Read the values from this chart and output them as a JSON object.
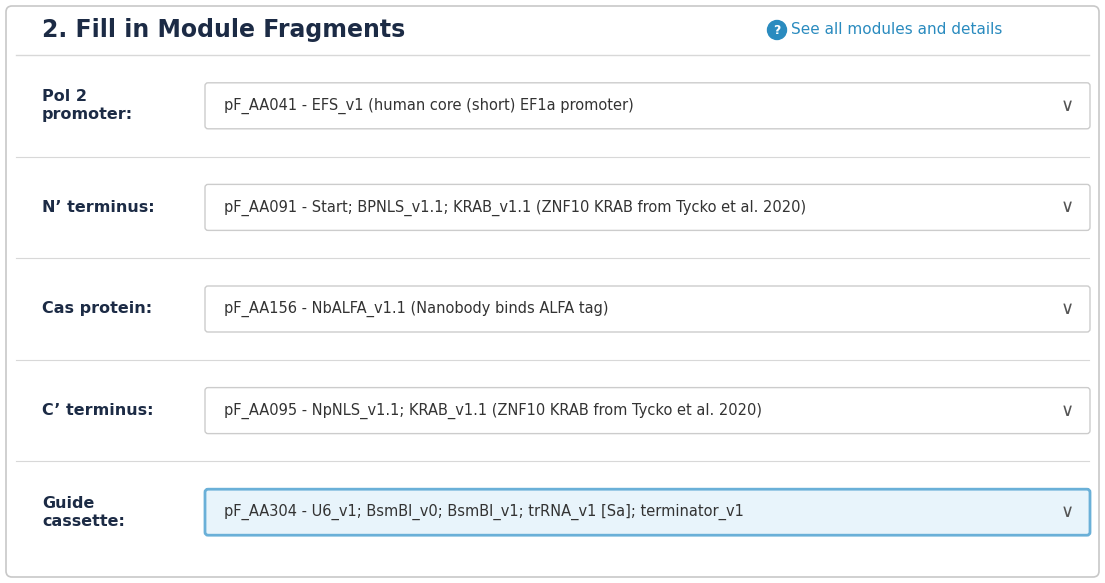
{
  "title": "2. Fill in Module Fragments",
  "title_fontsize": 17,
  "title_color": "#1c2b45",
  "link_text": "See all modules and details",
  "link_color": "#2a8bbf",
  "background_color": "#ffffff",
  "outer_border_color": "#c8c8c8",
  "divider_color": "#d8d8d8",
  "rows": [
    {
      "label_line1": "Pol 2",
      "label_line2": "promoter:",
      "value": "pF_AA041 - EFS_v1 (human core (short) EF1a promoter)",
      "highlighted": false
    },
    {
      "label_line1": "N’ terminus:",
      "label_line2": "",
      "value": "pF_AA091 - Start; BPNLS_v1.1; KRAB_v1.1 (ZNF10 KRAB from Tycko et al. 2020)",
      "highlighted": false
    },
    {
      "label_line1": "Cas protein:",
      "label_line2": "",
      "value": "pF_AA156 - NbALFA_v1.1 (Nanobody binds ALFA tag)",
      "highlighted": false
    },
    {
      "label_line1": "C’ terminus:",
      "label_line2": "",
      "value": "pF_AA095 - NpNLS_v1.1; KRAB_v1.1 (ZNF10 KRAB from Tycko et al. 2020)",
      "highlighted": false
    },
    {
      "label_line1": "Guide",
      "label_line2": "cassette:",
      "value": "pF_AA304 - U6_v1; BsmBI_v0; BsmBI_v1; trRNA_v1 [Sa]; terminator_v1",
      "highlighted": true
    }
  ],
  "label_fontsize": 11.5,
  "label_color": "#1c2b45",
  "value_fontsize": 10.5,
  "value_color": "#333333",
  "chevron_color": "#555555",
  "dropdown_border": "#cccccc",
  "highlight_border": "#6ab0d8",
  "highlight_bg": "#e8f4fb",
  "normal_bg": "#ffffff",
  "fig_width": 11.05,
  "fig_height": 5.83,
  "dpi": 100
}
